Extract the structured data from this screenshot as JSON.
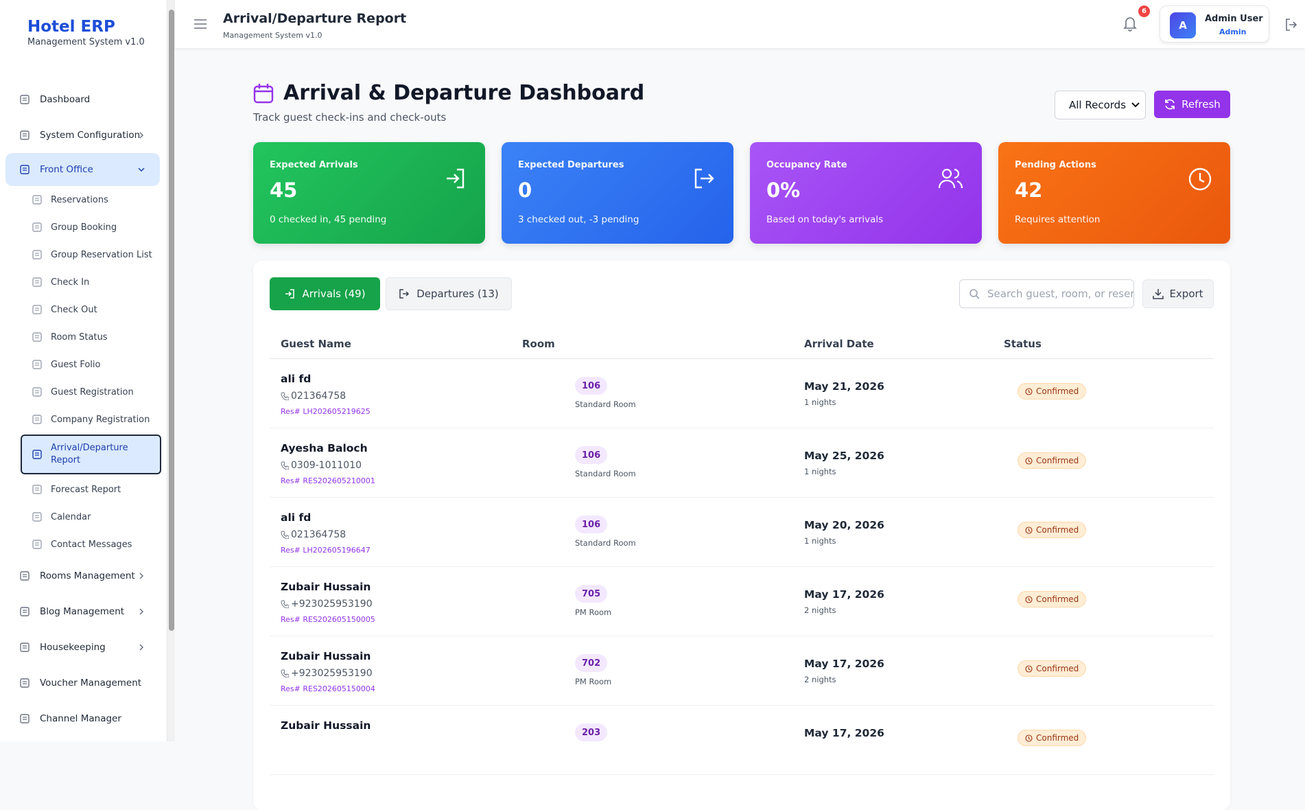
{
  "sidebar": {
    "brand": "Hotel ERP",
    "version": "Management System v1.0",
    "menu": [
      {
        "label": "Dashboard"
      },
      {
        "label": "System Configuration",
        "has_submenu": true
      },
      {
        "label": "Front Office",
        "has_submenu": true,
        "children": [
          {
            "label": "Reservations"
          },
          {
            "label": "Group Booking"
          },
          {
            "label": "Group Reservation List"
          },
          {
            "label": "Check In"
          },
          {
            "label": "Check Out"
          },
          {
            "label": "Room Status"
          },
          {
            "label": "Guest Folio"
          },
          {
            "label": "Guest Registration"
          },
          {
            "label": "Company Registration"
          },
          {
            "label": "Arrival/Departure Report",
            "active": true
          },
          {
            "label": "Forecast Report"
          },
          {
            "label": "Calendar"
          },
          {
            "label": "Contact Messages"
          }
        ]
      },
      {
        "label": "Rooms Management",
        "has_submenu": true
      },
      {
        "label": "Blog Management",
        "has_submenu": true
      },
      {
        "label": "Housekeeping",
        "has_submenu": true
      },
      {
        "label": "Voucher Management"
      },
      {
        "label": "Channel Manager"
      }
    ]
  },
  "header": {
    "title": "Arrival/Departure Report",
    "subtitle": "Management System v1.0",
    "notifications": 6,
    "user_initial": "A",
    "user_name": "Admin User",
    "user_role": "Admin"
  },
  "page": {
    "title": "Arrival & Departure Dashboard",
    "subtitle": "Track guest check-ins and check-outs",
    "filter": "All Records",
    "refresh": "Refresh"
  },
  "cards": [
    {
      "label": "Expected Arrivals",
      "value": "45",
      "note": "0 checked in, 45 pending"
    },
    {
      "label": "Expected Departures",
      "value": "0",
      "note": "3 checked out, -3 pending"
    },
    {
      "label": "Occupancy Rate",
      "value": "0%",
      "note": "Based on today's arrivals"
    },
    {
      "label": "Pending Actions",
      "value": "42",
      "note": "Requires attention"
    }
  ],
  "tabs": [
    "Arrivals (49)",
    "Departures (13)"
  ],
  "search_placeholder": "Search guest, room, or reser",
  "export": "Export",
  "table": {
    "columns": [
      "Guest Name",
      "Room",
      "Arrival Date",
      "Status"
    ],
    "rows": [
      {
        "name": "ali fd",
        "phone": "021364758",
        "res": "Res# LH202605219625",
        "room": "106",
        "room_type": "Standard Room",
        "date": "May 21, 2026",
        "nights": "1 nights",
        "status": "Confirmed"
      },
      {
        "name": "Ayesha Baloch",
        "phone": "0309-1011010",
        "res": "Res# RES202605210001",
        "room": "106",
        "room_type": "Standard Room",
        "date": "May 25, 2026",
        "nights": "1 nights",
        "status": "Confirmed"
      },
      {
        "name": "ali fd",
        "phone": "021364758",
        "res": "Res# LH202605196647",
        "room": "106",
        "room_type": "Standard Room",
        "date": "May 20, 2026",
        "nights": "1 nights",
        "status": "Confirmed"
      },
      {
        "name": "Zubair Hussain",
        "phone": "+923025953190",
        "res": "Res# RES202605150005",
        "room": "705",
        "room_type": "PM Room",
        "date": "May 17, 2026",
        "nights": "2 nights",
        "status": "Confirmed"
      },
      {
        "name": "Zubair Hussain",
        "phone": "+923025953190",
        "res": "Res# RES202605150004",
        "room": "702",
        "room_type": "PM Room",
        "date": "May 17, 2026",
        "nights": "2 nights",
        "status": "Confirmed"
      },
      {
        "name": "Zubair Hussain",
        "room": "203",
        "date": "May 17, 2026",
        "status": "Confirmed"
      }
    ]
  }
}
